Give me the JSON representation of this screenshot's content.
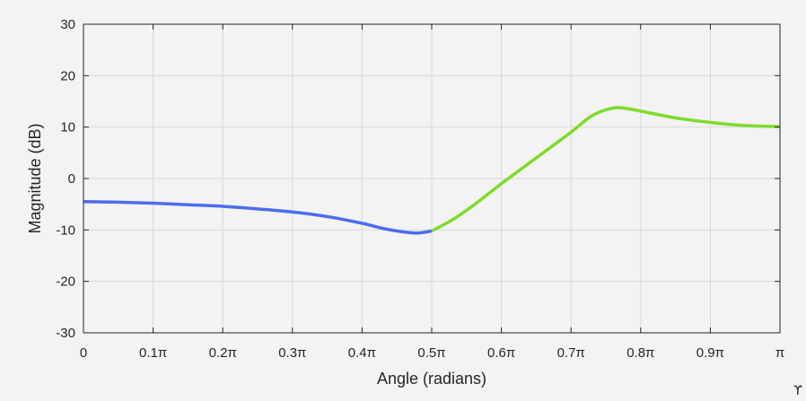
{
  "chart_data": {
    "type": "line",
    "xlabel": "Angle (radians)",
    "ylabel": "Magnitude (dB)",
    "xlim": [
      0,
      1
    ],
    "ylim": [
      -30,
      30
    ],
    "x_unit": "π",
    "x_ticks": [
      0,
      0.1,
      0.2,
      0.3,
      0.4,
      0.5,
      0.6,
      0.7,
      0.8,
      0.9,
      1.0
    ],
    "x_tick_labels": [
      "0",
      "0.1π",
      "0.2π",
      "0.3π",
      "0.4π",
      "0.5π",
      "0.6π",
      "0.7π",
      "0.8π",
      "0.9π",
      "π"
    ],
    "y_ticks": [
      -30,
      -20,
      -10,
      0,
      10,
      20,
      30
    ],
    "y_tick_labels": [
      "-30",
      "-20",
      "-10",
      "0",
      "10",
      "20",
      "30"
    ],
    "grid": true,
    "series": [
      {
        "color": "#4a6cf0",
        "x": [
          0,
          0.05,
          0.1,
          0.15,
          0.2,
          0.25,
          0.3,
          0.35,
          0.4,
          0.43,
          0.46,
          0.48,
          0.5
        ],
        "y": [
          -4.5,
          -4.6,
          -4.8,
          -5.1,
          -5.4,
          -5.9,
          -6.5,
          -7.4,
          -8.7,
          -9.7,
          -10.4,
          -10.6,
          -10.2
        ]
      },
      {
        "color": "#7ddc2c",
        "x": [
          0.5,
          0.53,
          0.56,
          0.6,
          0.65,
          0.7,
          0.73,
          0.76,
          0.78,
          0.8,
          0.85,
          0.9,
          0.95,
          1.0
        ],
        "y": [
          -10.2,
          -8.0,
          -5.2,
          -1.0,
          4.0,
          9.0,
          12.2,
          13.7,
          13.6,
          13.1,
          11.8,
          10.9,
          10.3,
          10.1
        ]
      }
    ]
  },
  "corner_glyph": "ϒ"
}
